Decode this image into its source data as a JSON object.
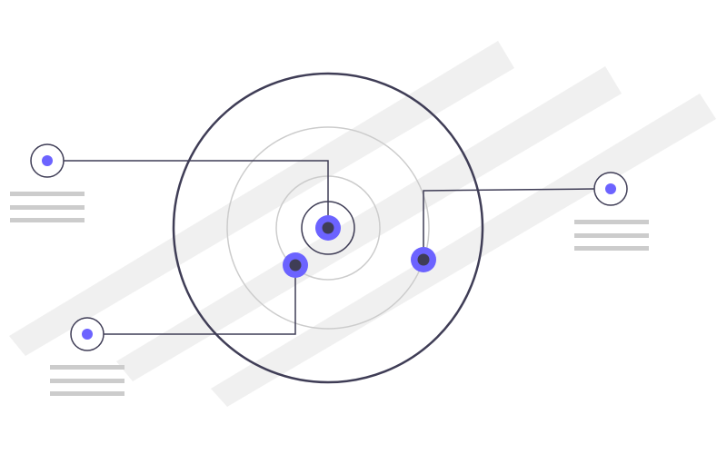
{
  "illustration": {
    "type": "radar-target-with-callouts",
    "colors": {
      "background": "#ffffff",
      "band": "#f0f0f0",
      "outline": "#3f3d56",
      "ring_light": "#cccccc",
      "accent": "#6c63ff",
      "dot": "#3f3d56",
      "placeholder_line": "#cccccc"
    },
    "callout_count": 3,
    "target_point_count": 3,
    "placeholder_lines_per_callout": 3
  }
}
